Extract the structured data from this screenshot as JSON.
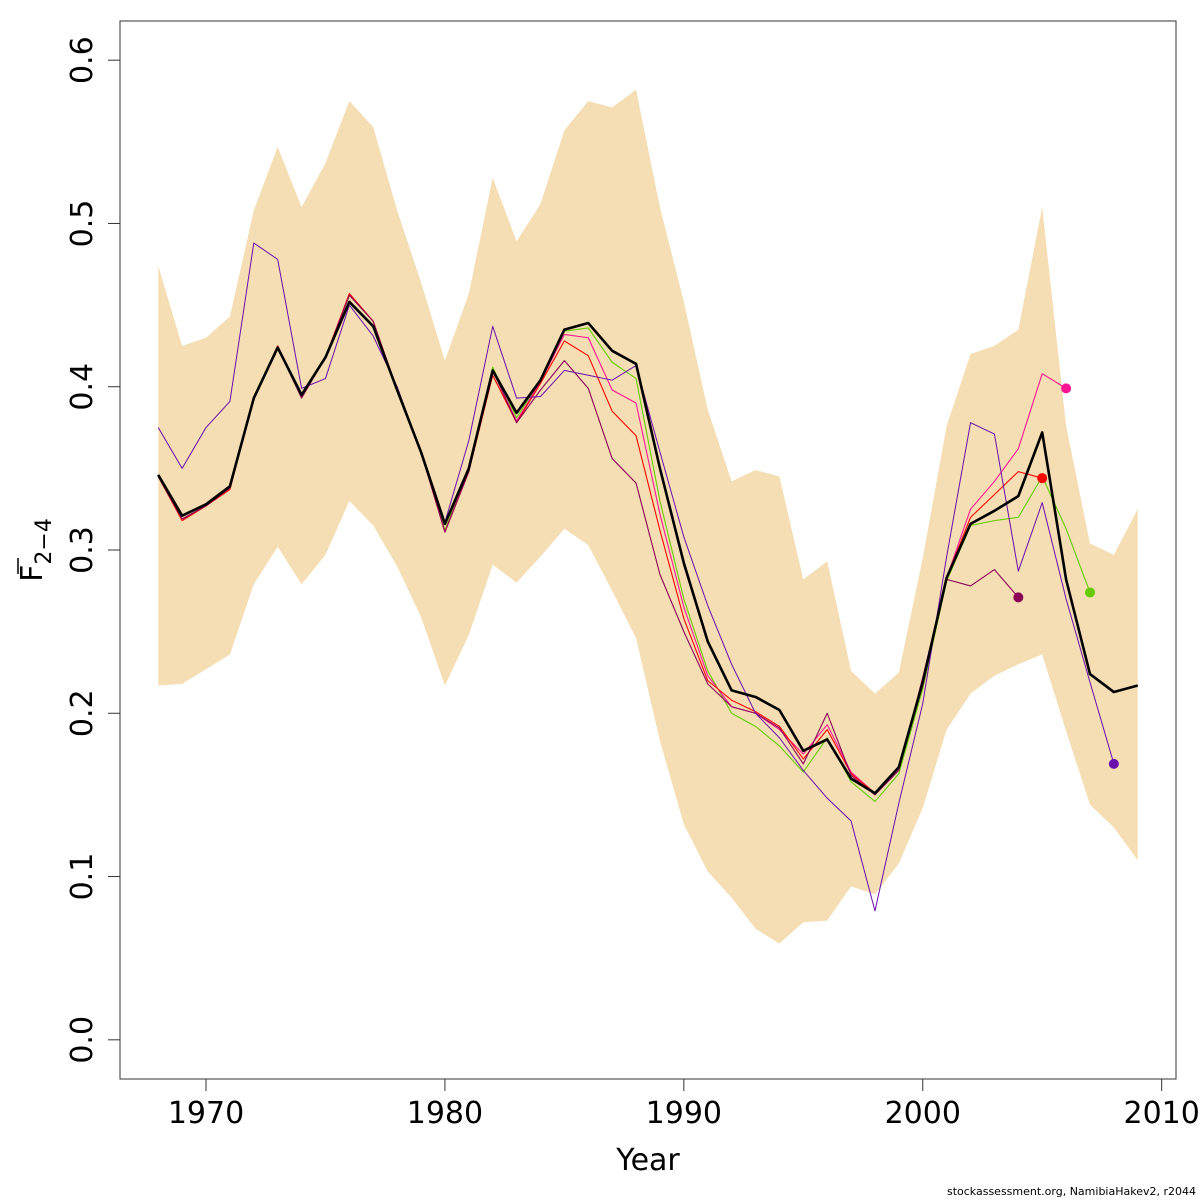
{
  "chart_data": {
    "type": "line",
    "xlabel": "Year",
    "ylabel_main": "F",
    "ylabel_sub": "2−4",
    "ylabel_overbar": true,
    "xlim": [
      1966.4,
      2010.6
    ],
    "ylim": [
      -0.024,
      0.624
    ],
    "x_ticks": [
      1970,
      1980,
      1990,
      2000,
      2010
    ],
    "x_tick_labels": [
      "1970",
      "1980",
      "1990",
      "2000",
      "2010"
    ],
    "y_ticks": [
      0.0,
      0.1,
      0.2,
      0.3,
      0.4,
      0.5,
      0.6
    ],
    "y_tick_labels": [
      "0.0",
      "0.1",
      "0.2",
      "0.3",
      "0.4",
      "0.5",
      "0.6"
    ],
    "grid": false,
    "credit": "stockassessment.org, NamibiaHakev2, r2044",
    "band": {
      "color": "#f5deb3",
      "x": [
        1968,
        1969,
        1970,
        1971,
        1972,
        1973,
        1974,
        1975,
        1976,
        1977,
        1978,
        1979,
        1980,
        1981,
        1982,
        1983,
        1984,
        1985,
        1986,
        1987,
        1988,
        1989,
        1990,
        1991,
        1992,
        1993,
        1994,
        1995,
        1996,
        1997,
        1998,
        1999,
        2000,
        2001,
        2002,
        2003,
        2004,
        2005,
        2006,
        2007,
        2008,
        2009
      ],
      "upper": [
        0.474,
        0.425,
        0.43,
        0.443,
        0.508,
        0.547,
        0.51,
        0.537,
        0.575,
        0.559,
        0.508,
        0.464,
        0.416,
        0.457,
        0.528,
        0.489,
        0.512,
        0.557,
        0.575,
        0.571,
        0.582,
        0.51,
        0.452,
        0.386,
        0.342,
        0.349,
        0.345,
        0.282,
        0.293,
        0.226,
        0.212,
        0.225,
        0.295,
        0.376,
        0.42,
        0.425,
        0.435,
        0.51,
        0.376,
        0.304,
        0.297,
        0.325
      ],
      "lower": [
        0.217,
        0.218,
        0.227,
        0.236,
        0.279,
        0.302,
        0.279,
        0.297,
        0.33,
        0.315,
        0.29,
        0.259,
        0.217,
        0.248,
        0.291,
        0.28,
        0.296,
        0.313,
        0.303,
        0.275,
        0.246,
        0.183,
        0.132,
        0.103,
        0.087,
        0.068,
        0.059,
        0.072,
        0.073,
        0.094,
        0.089,
        0.108,
        0.142,
        0.19,
        0.212,
        0.223,
        0.23,
        0.236,
        0.189,
        0.144,
        0.13,
        0.11
      ]
    },
    "series": [
      {
        "color": "#000000",
        "width": 2.6,
        "x": [
          1968,
          1969,
          1970,
          1971,
          1972,
          1973,
          1974,
          1975,
          1976,
          1977,
          1978,
          1979,
          1980,
          1981,
          1982,
          1983,
          1984,
          1985,
          1986,
          1987,
          1988,
          1989,
          1990,
          1991,
          1992,
          1993,
          1994,
          1995,
          1996,
          1997,
          1998,
          1999,
          2000,
          2001,
          2002,
          2003,
          2004,
          2005,
          2006,
          2007,
          2008,
          2009
        ],
        "y": [
          0.346,
          0.321,
          0.328,
          0.339,
          0.393,
          0.424,
          0.395,
          0.418,
          0.452,
          0.437,
          0.398,
          0.36,
          0.316,
          0.35,
          0.41,
          0.384,
          0.404,
          0.435,
          0.439,
          0.422,
          0.414,
          0.35,
          0.292,
          0.244,
          0.214,
          0.21,
          0.202,
          0.177,
          0.184,
          0.16,
          0.151,
          0.167,
          0.219,
          0.283,
          0.316,
          0.324,
          0.333,
          0.372,
          0.282,
          0.224,
          0.213,
          0.217
        ]
      },
      {
        "color": "#66cc00",
        "width": 1.1,
        "x": [
          1968,
          1969,
          1970,
          1971,
          1972,
          1973,
          1974,
          1975,
          1976,
          1977,
          1978,
          1979,
          1980,
          1981,
          1982,
          1983,
          1984,
          1985,
          1986,
          1987,
          1988,
          1989,
          1990,
          1991,
          1992,
          1993,
          1994,
          1995,
          1996,
          1997,
          1998,
          1999,
          2000,
          2001,
          2002,
          2003,
          2004,
          2005,
          2006,
          2007
        ],
        "y": [
          0.345,
          0.319,
          0.327,
          0.338,
          0.394,
          0.425,
          0.394,
          0.418,
          0.456,
          0.44,
          0.398,
          0.361,
          0.312,
          0.35,
          0.412,
          0.381,
          0.404,
          0.434,
          0.436,
          0.415,
          0.405,
          0.33,
          0.27,
          0.226,
          0.2,
          0.192,
          0.18,
          0.164,
          0.185,
          0.158,
          0.146,
          0.163,
          0.215,
          0.281,
          0.315,
          0.318,
          0.32,
          0.345,
          0.313,
          0.274
        ],
        "endpoint": true
      },
      {
        "color": "#ff1493",
        "width": 1.1,
        "x": [
          1968,
          1969,
          1970,
          1971,
          1972,
          1973,
          1974,
          1975,
          1976,
          1977,
          1978,
          1979,
          1980,
          1981,
          1982,
          1983,
          1984,
          1985,
          1986,
          1987,
          1988,
          1989,
          1990,
          1991,
          1992,
          1993,
          1994,
          1995,
          1996,
          1997,
          1998,
          1999,
          2000,
          2001,
          2002,
          2003,
          2004,
          2005,
          2006
        ],
        "y": [
          0.345,
          0.319,
          0.327,
          0.338,
          0.393,
          0.425,
          0.394,
          0.418,
          0.457,
          0.44,
          0.398,
          0.361,
          0.311,
          0.349,
          0.41,
          0.379,
          0.403,
          0.432,
          0.43,
          0.398,
          0.39,
          0.322,
          0.265,
          0.223,
          0.204,
          0.2,
          0.19,
          0.175,
          0.193,
          0.164,
          0.151,
          0.166,
          0.218,
          0.283,
          0.325,
          0.342,
          0.362,
          0.408,
          0.399
        ],
        "endpoint": true
      },
      {
        "color": "#ff0000",
        "width": 1.1,
        "x": [
          1968,
          1969,
          1970,
          1971,
          1972,
          1973,
          1974,
          1975,
          1976,
          1977,
          1978,
          1979,
          1980,
          1981,
          1982,
          1983,
          1984,
          1985,
          1986,
          1987,
          1988,
          1989,
          1990,
          1991,
          1992,
          1993,
          1994,
          1995,
          1996,
          1997,
          1998,
          1999,
          2000,
          2001,
          2002,
          2003,
          2004,
          2005
        ],
        "y": [
          0.345,
          0.318,
          0.327,
          0.337,
          0.393,
          0.425,
          0.394,
          0.418,
          0.457,
          0.44,
          0.398,
          0.36,
          0.311,
          0.348,
          0.407,
          0.378,
          0.402,
          0.428,
          0.419,
          0.385,
          0.37,
          0.312,
          0.258,
          0.22,
          0.208,
          0.201,
          0.192,
          0.172,
          0.19,
          0.163,
          0.151,
          0.167,
          0.217,
          0.283,
          0.32,
          0.334,
          0.348,
          0.344
        ],
        "endpoint": true
      },
      {
        "color": "#8b0057",
        "width": 1.1,
        "x": [
          1968,
          1969,
          1970,
          1971,
          1972,
          1973,
          1974,
          1975,
          1976,
          1977,
          1978,
          1979,
          1980,
          1981,
          1982,
          1983,
          1984,
          1985,
          1986,
          1987,
          1988,
          1989,
          1990,
          1991,
          1992,
          1993,
          1994,
          1995,
          1996,
          1997,
          1998,
          1999,
          2000,
          2001,
          2002,
          2003,
          2004
        ],
        "y": [
          0.345,
          0.319,
          0.327,
          0.338,
          0.393,
          0.424,
          0.393,
          0.418,
          0.456,
          0.44,
          0.398,
          0.36,
          0.311,
          0.348,
          0.41,
          0.378,
          0.398,
          0.416,
          0.399,
          0.356,
          0.341,
          0.285,
          0.25,
          0.218,
          0.204,
          0.2,
          0.191,
          0.169,
          0.2,
          0.162,
          0.15,
          0.165,
          0.222,
          0.282,
          0.278,
          0.288,
          0.271
        ],
        "endpoint": true
      },
      {
        "color": "#6a0dad",
        "width": 1.0,
        "x": [
          1968,
          1969,
          1970,
          1971,
          1972,
          1973,
          1974,
          1975,
          1976,
          1977,
          1978,
          1979,
          1980,
          1981,
          1982,
          1983,
          1984,
          1985,
          1986,
          1987,
          1988,
          1989,
          1990,
          1991,
          1992,
          1993,
          1994,
          1995,
          1996,
          1997,
          1998,
          1999,
          2000,
          2001,
          2002,
          2003,
          2004,
          2005,
          2006,
          2007,
          2008
        ],
        "y": [
          0.375,
          0.35,
          0.375,
          0.391,
          0.488,
          0.478,
          0.399,
          0.405,
          0.45,
          0.431,
          0.4,
          0.36,
          0.317,
          0.367,
          0.437,
          0.393,
          0.394,
          0.41,
          0.407,
          0.404,
          0.413,
          0.36,
          0.308,
          0.266,
          0.23,
          0.2,
          0.185,
          0.165,
          0.148,
          0.134,
          0.079,
          0.145,
          0.206,
          0.296,
          0.378,
          0.371,
          0.287,
          0.329,
          0.27,
          0.219,
          0.169
        ],
        "endpoint": true
      }
    ]
  }
}
